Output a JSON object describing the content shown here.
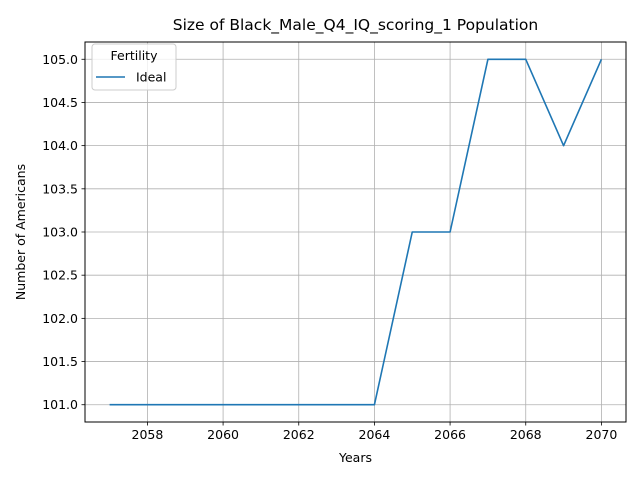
{
  "chart_data": {
    "type": "line",
    "title": "Size of Black_Male_Q4_IQ_scoring_1 Population",
    "xlabel": "Years",
    "ylabel": "Number of Americans",
    "xlim": [
      2056.35,
      2070.65
    ],
    "ylim": [
      100.8,
      105.2
    ],
    "xticks": [
      2058,
      2060,
      2062,
      2064,
      2066,
      2068,
      2070
    ],
    "yticks": [
      101.0,
      101.5,
      102.0,
      102.5,
      103.0,
      103.5,
      104.0,
      104.5,
      105.0
    ],
    "xtick_labels": [
      "2058",
      "2060",
      "2062",
      "2064",
      "2066",
      "2068",
      "2070"
    ],
    "ytick_labels": [
      "101.0",
      "101.5",
      "102.0",
      "102.5",
      "103.0",
      "103.5",
      "104.0",
      "104.5",
      "105.0"
    ],
    "grid": true,
    "legend": {
      "title": "Fertility",
      "placement": "upper-left"
    },
    "x": [
      2057,
      2058,
      2059,
      2060,
      2061,
      2062,
      2063,
      2064,
      2065,
      2066,
      2067,
      2068,
      2069,
      2070
    ],
    "series": [
      {
        "name": "Ideal",
        "color": "#1f77b4",
        "values": [
          101,
          101,
          101,
          101,
          101,
          101,
          101,
          101,
          103,
          103,
          105,
          105,
          104,
          105
        ]
      }
    ]
  }
}
